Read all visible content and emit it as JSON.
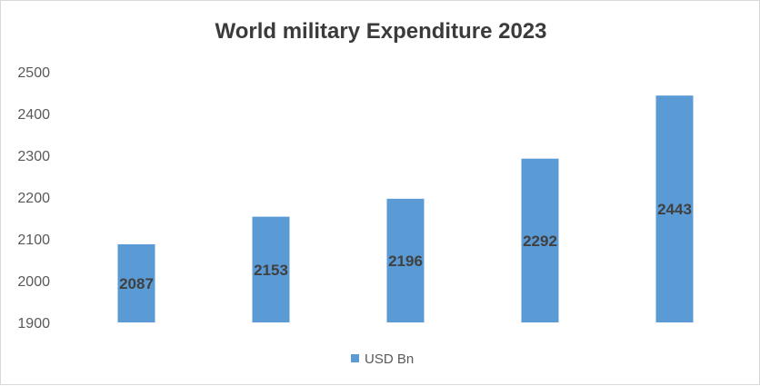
{
  "chart_data": {
    "type": "bar",
    "title": "World military Expenditure 2023",
    "xlabel": "",
    "ylabel": "",
    "categories": [
      "",
      "",
      "",
      "",
      ""
    ],
    "series": [
      {
        "name": "USD Bn",
        "color": "#5b9bd5",
        "values": [
          2087,
          2153,
          2196,
          2292,
          2443
        ]
      }
    ],
    "ylim": [
      1900,
      2500
    ],
    "yticks": [
      1900,
      2000,
      2100,
      2200,
      2300,
      2400,
      2500
    ],
    "grid": false,
    "legend": "bottom",
    "data_labels": [
      "2087",
      "2153",
      "2196",
      "2292",
      "2443"
    ]
  }
}
